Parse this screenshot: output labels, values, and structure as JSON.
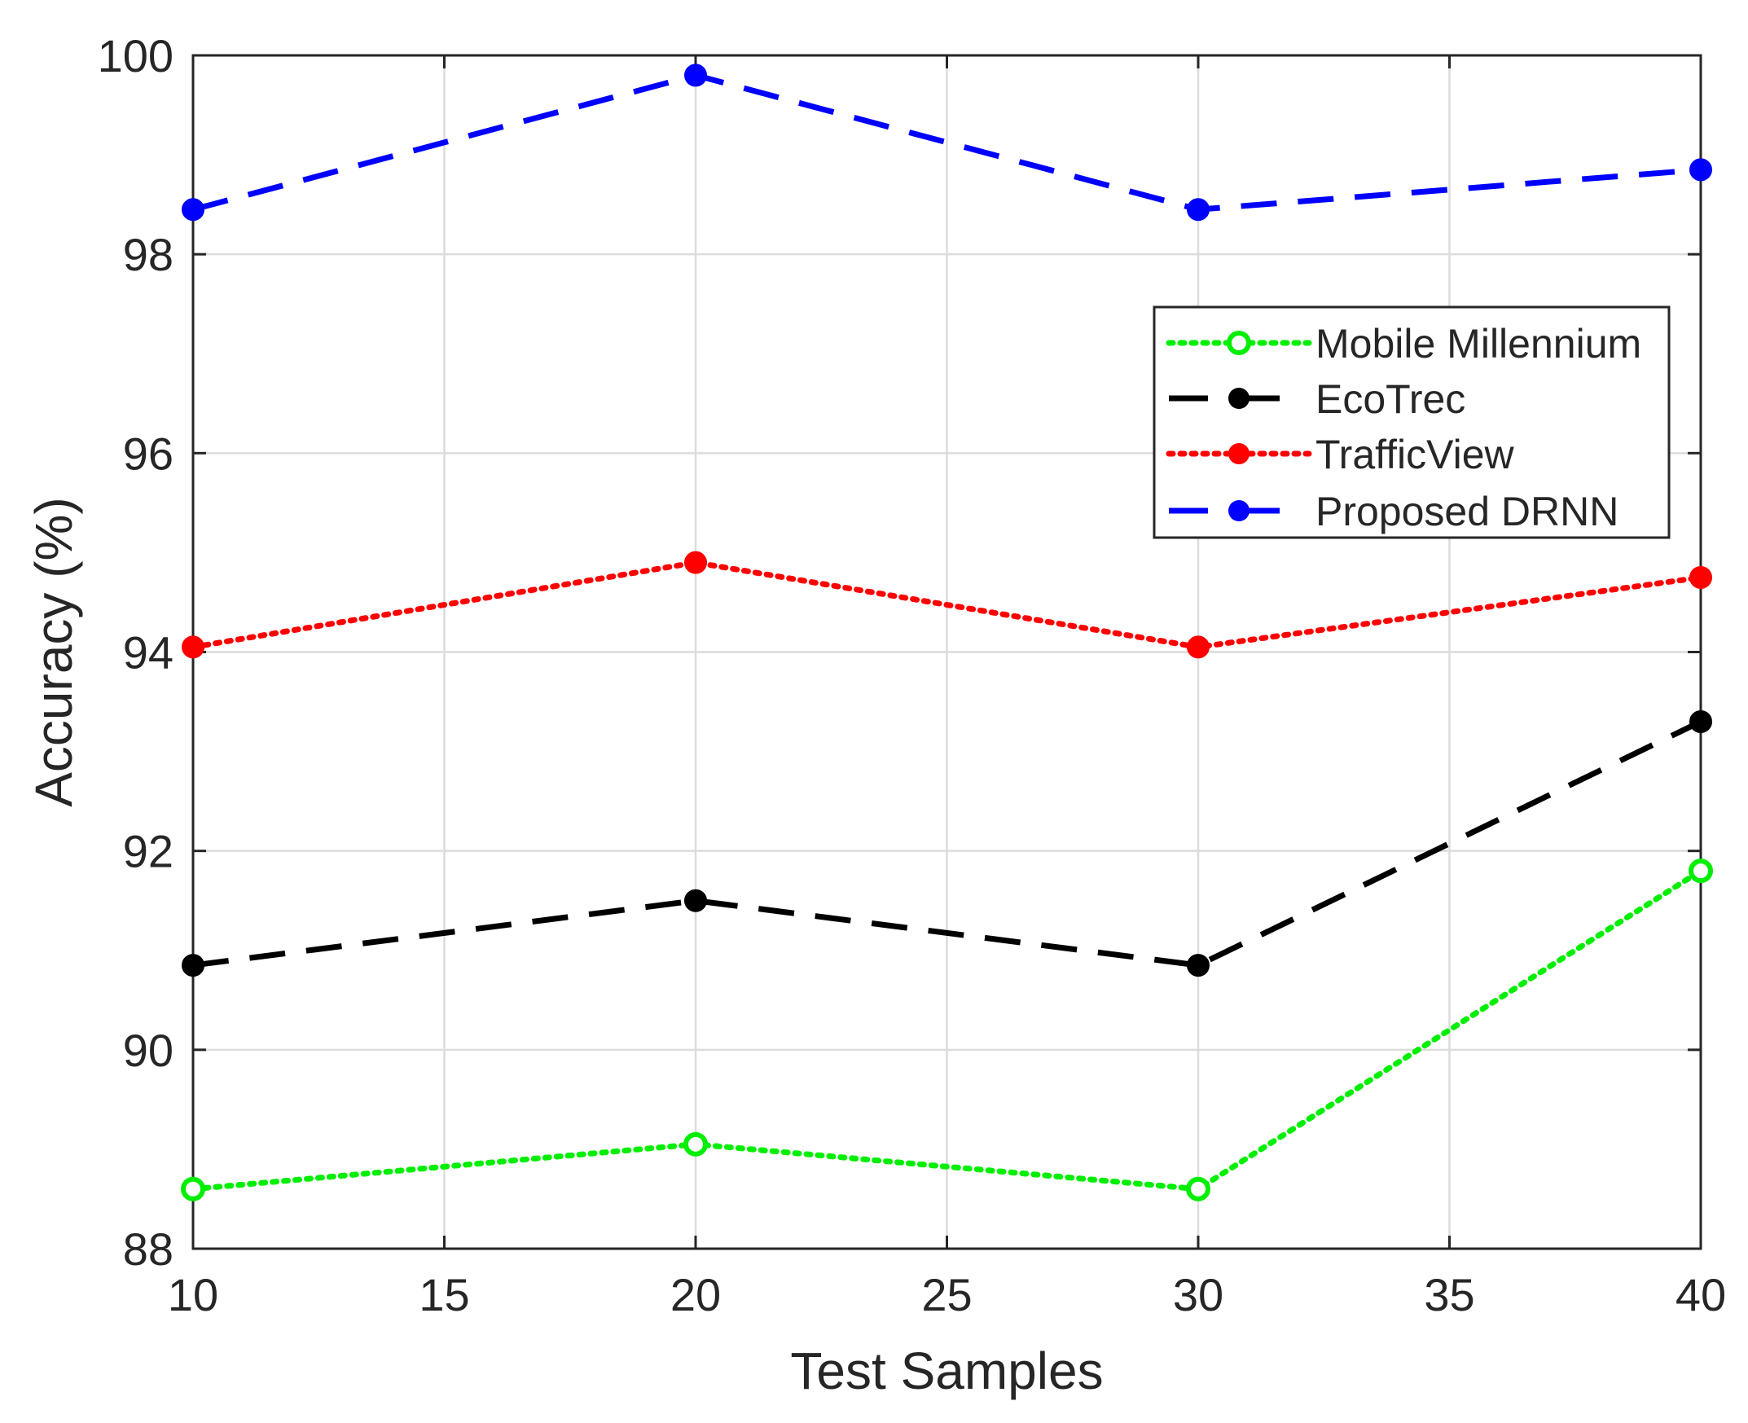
{
  "chart_data": {
    "type": "line",
    "title": "",
    "xlabel": "Test Samples",
    "ylabel": "Accuracy (%)",
    "x": [
      10,
      20,
      30,
      40
    ],
    "xlim": [
      10,
      40
    ],
    "ylim": [
      88,
      100
    ],
    "xticks": [
      10,
      15,
      20,
      25,
      30,
      35,
      40
    ],
    "yticks": [
      88,
      90,
      92,
      94,
      96,
      98,
      100
    ],
    "grid": true,
    "legend_position": "upper-right",
    "series": [
      {
        "name": "Mobile Millennium",
        "values": [
          88.6,
          89.05,
          88.6,
          91.8
        ],
        "color": "#00ee00",
        "line_style": "dotted",
        "marker": "open-circle"
      },
      {
        "name": "EcoTrec",
        "values": [
          90.85,
          91.5,
          90.85,
          93.3
        ],
        "color": "#000000",
        "line_style": "dashed",
        "marker": "filled-circle"
      },
      {
        "name": "TrafficView",
        "values": [
          94.05,
          94.9,
          94.05,
          94.75
        ],
        "color": "#ff0000",
        "line_style": "dotted",
        "marker": "filled-circle"
      },
      {
        "name": "Proposed DRNN",
        "values": [
          98.45,
          99.8,
          98.45,
          98.85
        ],
        "color": "#0000ff",
        "line_style": "dashed",
        "marker": "filled-circle"
      }
    ]
  }
}
